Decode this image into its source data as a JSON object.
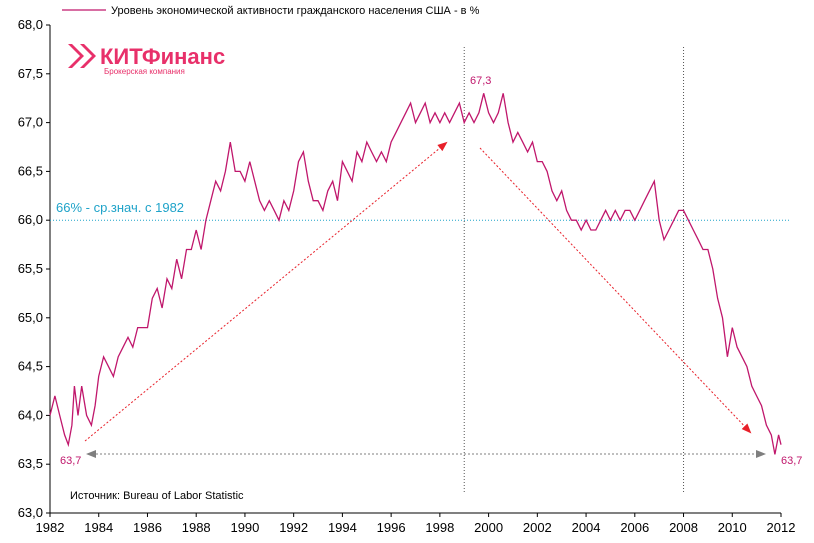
{
  "legend": {
    "label": "Уровень экономической активности гражданского населения США - в %",
    "color": "#c0176c"
  },
  "logo": {
    "name": "КИТФинанс",
    "subtitle": "Брокерская компания",
    "color": "#e8306a"
  },
  "source": "Источник: Bureau of Labor Statistic",
  "colors": {
    "series": "#c0176c",
    "avg_line": "#1fa3c9",
    "arrow_red": "#e8202a",
    "arrow_gray": "#7f7f7f"
  },
  "annotations": {
    "start_low": "63,7",
    "peak": "67,3",
    "end_low": "63,7",
    "avg_label": "66% - ср.знач. с 1982"
  },
  "chart_data": {
    "type": "line",
    "title": "",
    "xlabel": "",
    "ylabel": "",
    "xlim": [
      1982,
      2012
    ],
    "ylim": [
      63.0,
      68.0
    ],
    "x_ticks": [
      "1982",
      "1984",
      "1986",
      "1988",
      "1990",
      "1992",
      "1994",
      "1996",
      "1998",
      "2000",
      "2002",
      "2004",
      "2006",
      "2008",
      "2010",
      "2012"
    ],
    "y_ticks": [
      "63,0",
      "63,5",
      "64,0",
      "64,5",
      "65,0",
      "65,5",
      "66,0",
      "66,5",
      "67,0",
      "67,5",
      "68,0"
    ],
    "grid": false,
    "legend_position": "top-left",
    "reference_lines": {
      "horizontal": [
        66.0
      ],
      "vertical": [
        1999.0,
        2008.0
      ]
    },
    "series": [
      {
        "name": "Уровень экономической активности гражданского населения США - в %",
        "points": [
          [
            1982.0,
            64.0
          ],
          [
            1982.2,
            64.2
          ],
          [
            1982.4,
            64.0
          ],
          [
            1982.6,
            63.8
          ],
          [
            1982.75,
            63.7
          ],
          [
            1982.9,
            63.9
          ],
          [
            1983.0,
            64.3
          ],
          [
            1983.15,
            64.0
          ],
          [
            1983.3,
            64.3
          ],
          [
            1983.5,
            64.0
          ],
          [
            1983.7,
            63.9
          ],
          [
            1983.85,
            64.1
          ],
          [
            1984.0,
            64.4
          ],
          [
            1984.2,
            64.6
          ],
          [
            1984.4,
            64.5
          ],
          [
            1984.6,
            64.4
          ],
          [
            1984.8,
            64.6
          ],
          [
            1985.0,
            64.7
          ],
          [
            1985.2,
            64.8
          ],
          [
            1985.4,
            64.7
          ],
          [
            1985.6,
            64.9
          ],
          [
            1985.8,
            64.9
          ],
          [
            1986.0,
            64.9
          ],
          [
            1986.2,
            65.2
          ],
          [
            1986.4,
            65.3
          ],
          [
            1986.6,
            65.1
          ],
          [
            1986.8,
            65.4
          ],
          [
            1987.0,
            65.3
          ],
          [
            1987.2,
            65.6
          ],
          [
            1987.4,
            65.4
          ],
          [
            1987.6,
            65.7
          ],
          [
            1987.8,
            65.7
          ],
          [
            1988.0,
            65.9
          ],
          [
            1988.2,
            65.7
          ],
          [
            1988.4,
            66.0
          ],
          [
            1988.6,
            66.2
          ],
          [
            1988.8,
            66.4
          ],
          [
            1989.0,
            66.3
          ],
          [
            1989.2,
            66.5
          ],
          [
            1989.4,
            66.8
          ],
          [
            1989.6,
            66.5
          ],
          [
            1989.8,
            66.5
          ],
          [
            1990.0,
            66.4
          ],
          [
            1990.2,
            66.6
          ],
          [
            1990.4,
            66.4
          ],
          [
            1990.6,
            66.2
          ],
          [
            1990.8,
            66.1
          ],
          [
            1991.0,
            66.2
          ],
          [
            1991.2,
            66.1
          ],
          [
            1991.4,
            66.0
          ],
          [
            1991.6,
            66.2
          ],
          [
            1991.8,
            66.1
          ],
          [
            1992.0,
            66.3
          ],
          [
            1992.2,
            66.6
          ],
          [
            1992.4,
            66.7
          ],
          [
            1992.6,
            66.4
          ],
          [
            1992.8,
            66.2
          ],
          [
            1993.0,
            66.2
          ],
          [
            1993.2,
            66.1
          ],
          [
            1993.4,
            66.3
          ],
          [
            1993.6,
            66.4
          ],
          [
            1993.8,
            66.2
          ],
          [
            1994.0,
            66.6
          ],
          [
            1994.2,
            66.5
          ],
          [
            1994.4,
            66.4
          ],
          [
            1994.6,
            66.7
          ],
          [
            1994.8,
            66.6
          ],
          [
            1995.0,
            66.8
          ],
          [
            1995.2,
            66.7
          ],
          [
            1995.4,
            66.6
          ],
          [
            1995.6,
            66.7
          ],
          [
            1995.8,
            66.6
          ],
          [
            1996.0,
            66.8
          ],
          [
            1996.2,
            66.9
          ],
          [
            1996.4,
            67.0
          ],
          [
            1996.6,
            67.1
          ],
          [
            1996.8,
            67.2
          ],
          [
            1997.0,
            67.0
          ],
          [
            1997.2,
            67.1
          ],
          [
            1997.4,
            67.2
          ],
          [
            1997.6,
            67.0
          ],
          [
            1997.8,
            67.1
          ],
          [
            1998.0,
            67.0
          ],
          [
            1998.2,
            67.1
          ],
          [
            1998.4,
            67.0
          ],
          [
            1998.6,
            67.1
          ],
          [
            1998.8,
            67.2
          ],
          [
            1999.0,
            67.0
          ],
          [
            1999.2,
            67.1
          ],
          [
            1999.4,
            67.0
          ],
          [
            1999.6,
            67.1
          ],
          [
            1999.8,
            67.3
          ],
          [
            2000.0,
            67.1
          ],
          [
            2000.2,
            67.0
          ],
          [
            2000.4,
            67.1
          ],
          [
            2000.6,
            67.3
          ],
          [
            2000.8,
            67.0
          ],
          [
            2001.0,
            66.8
          ],
          [
            2001.2,
            66.9
          ],
          [
            2001.4,
            66.8
          ],
          [
            2001.6,
            66.7
          ],
          [
            2001.8,
            66.8
          ],
          [
            2002.0,
            66.6
          ],
          [
            2002.2,
            66.6
          ],
          [
            2002.4,
            66.5
          ],
          [
            2002.6,
            66.3
          ],
          [
            2002.8,
            66.2
          ],
          [
            2003.0,
            66.3
          ],
          [
            2003.2,
            66.1
          ],
          [
            2003.4,
            66.0
          ],
          [
            2003.6,
            66.0
          ],
          [
            2003.8,
            65.9
          ],
          [
            2004.0,
            66.0
          ],
          [
            2004.2,
            65.9
          ],
          [
            2004.4,
            65.9
          ],
          [
            2004.6,
            66.0
          ],
          [
            2004.8,
            66.1
          ],
          [
            2005.0,
            66.0
          ],
          [
            2005.2,
            66.1
          ],
          [
            2005.4,
            66.0
          ],
          [
            2005.6,
            66.1
          ],
          [
            2005.8,
            66.1
          ],
          [
            2006.0,
            66.0
          ],
          [
            2006.2,
            66.1
          ],
          [
            2006.4,
            66.2
          ],
          [
            2006.6,
            66.3
          ],
          [
            2006.8,
            66.4
          ],
          [
            2007.0,
            66.0
          ],
          [
            2007.2,
            65.8
          ],
          [
            2007.4,
            65.9
          ],
          [
            2007.6,
            66.0
          ],
          [
            2007.8,
            66.1
          ],
          [
            2008.0,
            66.1
          ],
          [
            2008.2,
            66.0
          ],
          [
            2008.4,
            65.9
          ],
          [
            2008.6,
            65.8
          ],
          [
            2008.8,
            65.7
          ],
          [
            2009.0,
            65.7
          ],
          [
            2009.2,
            65.5
          ],
          [
            2009.4,
            65.2
          ],
          [
            2009.6,
            65.0
          ],
          [
            2009.8,
            64.6
          ],
          [
            2010.0,
            64.9
          ],
          [
            2010.2,
            64.7
          ],
          [
            2010.4,
            64.6
          ],
          [
            2010.6,
            64.5
          ],
          [
            2010.8,
            64.3
          ],
          [
            2011.0,
            64.2
          ],
          [
            2011.2,
            64.1
          ],
          [
            2011.4,
            63.9
          ],
          [
            2011.6,
            63.8
          ],
          [
            2011.75,
            63.6
          ],
          [
            2011.9,
            63.8
          ],
          [
            2012.0,
            63.7
          ]
        ]
      }
    ]
  }
}
